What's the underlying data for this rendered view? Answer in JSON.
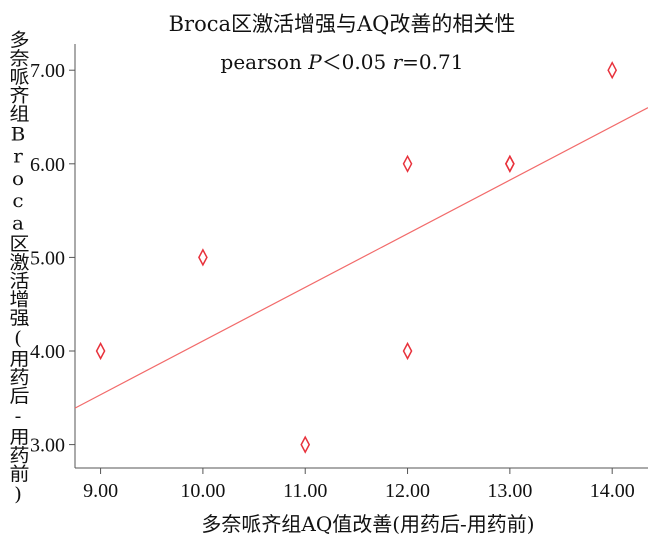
{
  "chart_data": {
    "type": "scatter",
    "title": "Broca区激活增强与AQ改善的相关性",
    "annotation": "pearson P＜0.05 r=0.71",
    "xlabel": "多奈哌齐组AQ值改善(用药后-用药前)",
    "ylabel": "多奈哌齐组Broca区激活增强(用药后-用药前)",
    "xlim": [
      8.75,
      14.35
    ],
    "ylim": [
      2.75,
      7.28
    ],
    "x_ticks": [
      9.0,
      10.0,
      11.0,
      12.0,
      13.0,
      14.0
    ],
    "x_tick_labels": [
      "9.00",
      "10.00",
      "11.00",
      "12.00",
      "13.00",
      "14.00"
    ],
    "y_ticks": [
      3.0,
      4.0,
      5.0,
      6.0,
      7.0
    ],
    "y_tick_labels": [
      "3.00",
      "4.00",
      "5.00",
      "6.00",
      "7.00"
    ],
    "points": [
      {
        "x": 9,
        "y": 4
      },
      {
        "x": 10,
        "y": 5
      },
      {
        "x": 11,
        "y": 3
      },
      {
        "x": 12,
        "y": 6
      },
      {
        "x": 12,
        "y": 4
      },
      {
        "x": 13,
        "y": 6
      },
      {
        "x": 13,
        "y": 6
      },
      {
        "x": 14,
        "y": 7
      }
    ],
    "fit_line": {
      "x": [
        8.75,
        14.35
      ],
      "y": [
        3.39,
        6.6
      ]
    },
    "marker": "diamond",
    "colors": {
      "points": "#e8323c",
      "fit_line": "#f26b6b",
      "axis": "#555555"
    },
    "grid": false
  }
}
